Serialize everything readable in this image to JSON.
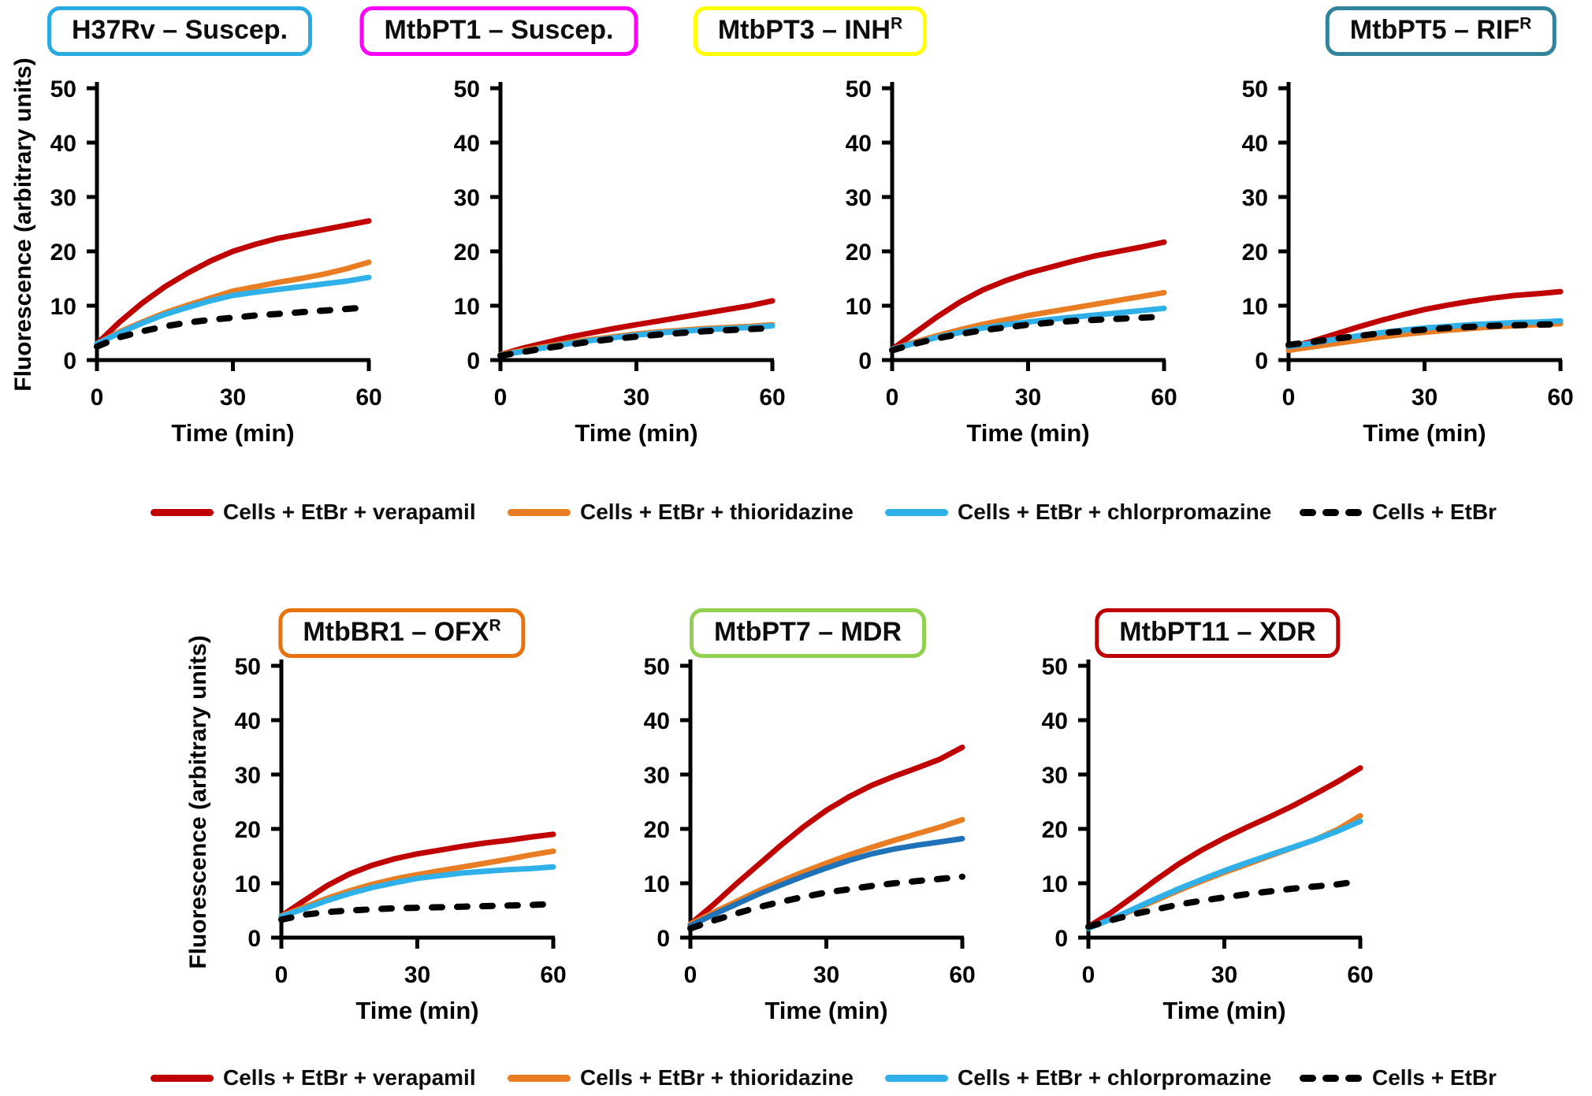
{
  "figure": {
    "y_axis_label": "Fluorescence (arbitrary units)",
    "x_axis_label": "Time (min)"
  },
  "legend": {
    "items": [
      {
        "label": "Cells + EtBr + verapamil",
        "color": "#C00000",
        "style": "solid"
      },
      {
        "label": "Cells + EtBr + thioridazine",
        "color": "#E87D23",
        "style": "solid"
      },
      {
        "label": "Cells + EtBr + chlorpromazine",
        "color": "#2FB0E8",
        "style": "solid"
      },
      {
        "label": "Cells + EtBr",
        "color": "#000000",
        "style": "dashed"
      }
    ]
  },
  "chart_data": [
    {
      "type": "line",
      "title": "H37Rv – Suscep.",
      "title_superscript": "",
      "frame_color": "#29ABE2",
      "x_label": "Time (min)",
      "y_label": "Fluorescence (arbitrary units)",
      "xlim": [
        0,
        60
      ],
      "ylim": [
        0,
        50
      ],
      "x_ticks": [
        0,
        30,
        60
      ],
      "y_ticks": [
        0,
        10,
        20,
        30,
        40,
        50
      ],
      "x": [
        0,
        5,
        10,
        15,
        20,
        25,
        30,
        35,
        40,
        45,
        50,
        55,
        60
      ],
      "series": [
        {
          "name": "Cells + EtBr + verapamil",
          "color": "#C00000",
          "style": "solid",
          "values": [
            3,
            7,
            10.5,
            13.5,
            16,
            18.2,
            20,
            21.3,
            22.4,
            23.2,
            24,
            24.8,
            25.6
          ]
        },
        {
          "name": "Cells + EtBr + thioridazine",
          "color": "#E87D23",
          "style": "solid",
          "values": [
            3,
            5.2,
            7,
            8.7,
            10.1,
            11.4,
            12.7,
            13.5,
            14.3,
            15,
            15.8,
            16.8,
            18
          ]
        },
        {
          "name": "Cells + EtBr + chlorpromazine",
          "color": "#2FB0E8",
          "style": "solid",
          "values": [
            3,
            5,
            6.8,
            8.4,
            9.7,
            10.9,
            11.9,
            12.5,
            13,
            13.5,
            14,
            14.5,
            15.2
          ]
        },
        {
          "name": "Cells + EtBr",
          "color": "#000000",
          "style": "dashed",
          "values": [
            2.5,
            4.2,
            5.3,
            6.2,
            6.9,
            7.4,
            7.8,
            8.2,
            8.5,
            8.8,
            9.1,
            9.4,
            9.7
          ]
        }
      ]
    },
    {
      "type": "line",
      "title": "MtbPT1 – Suscep.",
      "title_superscript": "",
      "frame_color": "#FF00FF",
      "x_label": "Time (min)",
      "y_label": "Fluorescence (arbitrary units)",
      "xlim": [
        0,
        60
      ],
      "ylim": [
        0,
        50
      ],
      "x_ticks": [
        0,
        30,
        60
      ],
      "y_ticks": [
        0,
        10,
        20,
        30,
        40,
        50
      ],
      "x": [
        0,
        5,
        10,
        15,
        20,
        25,
        30,
        35,
        40,
        45,
        50,
        55,
        60
      ],
      "series": [
        {
          "name": "Cells + EtBr + verapamil",
          "color": "#C00000",
          "style": "solid",
          "values": [
            1,
            2.2,
            3.2,
            4.2,
            5,
            5.8,
            6.5,
            7.2,
            7.9,
            8.6,
            9.3,
            10,
            10.9
          ]
        },
        {
          "name": "Cells + EtBr + thioridazine",
          "color": "#E87D23",
          "style": "solid",
          "values": [
            1,
            1.8,
            2.5,
            3.2,
            3.8,
            4.3,
            4.8,
            5.2,
            5.5,
            5.8,
            6,
            6.2,
            6.5
          ]
        },
        {
          "name": "Cells + EtBr + chlorpromazine",
          "color": "#2FB0E8",
          "style": "solid",
          "values": [
            0.9,
            1.6,
            2.3,
            3,
            3.6,
            4.1,
            4.6,
            5,
            5.3,
            5.6,
            5.8,
            6,
            6.3
          ]
        },
        {
          "name": "Cells + EtBr",
          "color": "#000000",
          "style": "dashed",
          "values": [
            0.8,
            1.5,
            2.2,
            2.8,
            3.4,
            3.9,
            4.3,
            4.7,
            5,
            5.3,
            5.5,
            5.7,
            5.9
          ]
        }
      ]
    },
    {
      "type": "line",
      "title": "MtbPT3 – INH",
      "title_superscript": "R",
      "frame_color": "#FFFF00",
      "x_label": "Time (min)",
      "y_label": "Fluorescence (arbitrary units)",
      "xlim": [
        0,
        60
      ],
      "ylim": [
        0,
        50
      ],
      "x_ticks": [
        0,
        30,
        60
      ],
      "y_ticks": [
        0,
        10,
        20,
        30,
        40,
        50
      ],
      "x": [
        0,
        5,
        10,
        15,
        20,
        25,
        30,
        35,
        40,
        45,
        50,
        55,
        60
      ],
      "series": [
        {
          "name": "Cells + EtBr + verapamil",
          "color": "#C00000",
          "style": "solid",
          "values": [
            2,
            5,
            8,
            10.7,
            12.9,
            14.6,
            16,
            17.1,
            18.2,
            19.2,
            20,
            20.8,
            21.7
          ]
        },
        {
          "name": "Cells + EtBr + thioridazine",
          "color": "#E87D23",
          "style": "solid",
          "values": [
            2,
            3.3,
            4.5,
            5.6,
            6.6,
            7.4,
            8.2,
            8.9,
            9.6,
            10.3,
            11,
            11.7,
            12.4
          ]
        },
        {
          "name": "Cells + EtBr + chlorpromazine",
          "color": "#2FB0E8",
          "style": "solid",
          "values": [
            2,
            3.1,
            4.2,
            5.1,
            5.9,
            6.5,
            7,
            7.5,
            7.9,
            8.3,
            8.7,
            9.1,
            9.5
          ]
        },
        {
          "name": "Cells + EtBr",
          "color": "#000000",
          "style": "dashed",
          "values": [
            1.8,
            3,
            4,
            4.8,
            5.5,
            6,
            6.5,
            6.9,
            7.2,
            7.4,
            7.6,
            7.8,
            8
          ]
        }
      ]
    },
    {
      "type": "line",
      "title": "MtbPT5 – RIF",
      "title_superscript": "R",
      "frame_color": "#31849B",
      "x_label": "Time (min)",
      "y_label": "Fluorescence (arbitrary units)",
      "xlim": [
        0,
        60
      ],
      "ylim": [
        0,
        50
      ],
      "x_ticks": [
        0,
        30,
        60
      ],
      "y_ticks": [
        0,
        10,
        20,
        30,
        40,
        50
      ],
      "x": [
        0,
        5,
        10,
        15,
        20,
        25,
        30,
        35,
        40,
        45,
        50,
        55,
        60
      ],
      "series": [
        {
          "name": "Cells + EtBr + verapamil",
          "color": "#C00000",
          "style": "solid",
          "values": [
            2.3,
            3.4,
            4.7,
            6,
            7.2,
            8.3,
            9.3,
            10.1,
            10.8,
            11.4,
            11.9,
            12.2,
            12.6
          ]
        },
        {
          "name": "Cells + EtBr + thioridazine",
          "color": "#E87D23",
          "style": "solid",
          "values": [
            1.8,
            2.4,
            3,
            3.6,
            4.2,
            4.7,
            5.1,
            5.5,
            5.8,
            6.1,
            6.3,
            6.5,
            6.7
          ]
        },
        {
          "name": "Cells + EtBr + chlorpromazine",
          "color": "#2FB0E8",
          "style": "solid",
          "values": [
            2.5,
            3.1,
            3.8,
            4.4,
            5,
            5.5,
            5.9,
            6.2,
            6.5,
            6.7,
            6.9,
            7,
            7.2
          ]
        },
        {
          "name": "Cells + EtBr",
          "color": "#000000",
          "style": "dashed",
          "values": [
            2.8,
            3.3,
            3.9,
            4.4,
            4.9,
            5.3,
            5.6,
            5.9,
            6.1,
            6.3,
            6.4,
            6.5,
            6.6
          ]
        }
      ]
    },
    {
      "type": "line",
      "title": "MtbBR1 – OFX",
      "title_superscript": "R",
      "frame_color": "#E8720C",
      "x_label": "Time (min)",
      "y_label": "Fluorescence (arbitrary units)",
      "xlim": [
        0,
        60
      ],
      "ylim": [
        0,
        50
      ],
      "x_ticks": [
        0,
        30,
        60
      ],
      "y_ticks": [
        0,
        10,
        20,
        30,
        40,
        50
      ],
      "x": [
        0,
        5,
        10,
        15,
        20,
        25,
        30,
        35,
        40,
        45,
        50,
        55,
        60
      ],
      "series": [
        {
          "name": "Cells + EtBr + verapamil",
          "color": "#C00000",
          "style": "solid",
          "values": [
            4,
            6.8,
            9.5,
            11.7,
            13.3,
            14.5,
            15.4,
            16.1,
            16.8,
            17.4,
            17.9,
            18.5,
            19
          ]
        },
        {
          "name": "Cells + EtBr + thioridazine",
          "color": "#E87D23",
          "style": "solid",
          "values": [
            4,
            5.6,
            7.2,
            8.6,
            9.8,
            10.8,
            11.6,
            12.3,
            13,
            13.7,
            14.4,
            15.2,
            15.9
          ]
        },
        {
          "name": "Cells + EtBr + chlorpromazine",
          "color": "#2FB0E8",
          "style": "solid",
          "values": [
            3.9,
            5.3,
            6.8,
            8.1,
            9.2,
            10.1,
            10.9,
            11.4,
            11.9,
            12.2,
            12.5,
            12.7,
            13
          ]
        },
        {
          "name": "Cells + EtBr",
          "color": "#000000",
          "style": "dashed",
          "values": [
            3.3,
            4.2,
            4.7,
            5,
            5.2,
            5.4,
            5.5,
            5.6,
            5.7,
            5.8,
            5.9,
            6,
            6.2
          ]
        }
      ]
    },
    {
      "type": "line",
      "title": "MtbPT7 – MDR",
      "title_superscript": "",
      "frame_color": "#92D050",
      "x_label": "Time (min)",
      "y_label": "Fluorescence (arbitrary units)",
      "xlim": [
        0,
        60
      ],
      "ylim": [
        0,
        50
      ],
      "x_ticks": [
        0,
        30,
        60
      ],
      "y_ticks": [
        0,
        10,
        20,
        30,
        40,
        50
      ],
      "x": [
        0,
        5,
        10,
        15,
        20,
        25,
        30,
        35,
        40,
        45,
        50,
        55,
        60
      ],
      "series": [
        {
          "name": "Cells + EtBr + verapamil",
          "color": "#C00000",
          "style": "solid",
          "values": [
            2.5,
            6,
            9.8,
            13.4,
            17,
            20.4,
            23.4,
            25.9,
            28,
            29.7,
            31.2,
            32.8,
            35
          ]
        },
        {
          "name": "Cells + EtBr + thioridazine",
          "color": "#E87D23",
          "style": "solid",
          "values": [
            2.5,
            4.6,
            6.6,
            8.6,
            10.4,
            12.1,
            13.7,
            15.2,
            16.6,
            17.9,
            19.1,
            20.3,
            21.7
          ]
        },
        {
          "name": "Cells + EtBr + chlorpromazine",
          "color": "#1F72B8",
          "style": "solid",
          "values": [
            2.2,
            4.2,
            6.1,
            8,
            9.7,
            11.3,
            12.8,
            14.2,
            15.4,
            16.3,
            17,
            17.6,
            18.2
          ]
        },
        {
          "name": "Cells + EtBr",
          "color": "#000000",
          "style": "dashed",
          "values": [
            1.7,
            3.1,
            4.4,
            5.6,
            6.6,
            7.5,
            8.3,
            8.9,
            9.5,
            10,
            10.4,
            10.8,
            11.2
          ]
        }
      ]
    },
    {
      "type": "line",
      "title": "MtbPT11 – XDR",
      "title_superscript": "",
      "frame_color": "#C00000",
      "x_label": "Time (min)",
      "y_label": "Fluorescence (arbitrary units)",
      "xlim": [
        0,
        60
      ],
      "ylim": [
        0,
        50
      ],
      "x_ticks": [
        0,
        30,
        60
      ],
      "y_ticks": [
        0,
        10,
        20,
        30,
        40,
        50
      ],
      "x": [
        0,
        5,
        10,
        15,
        20,
        25,
        30,
        35,
        40,
        45,
        50,
        55,
        60
      ],
      "series": [
        {
          "name": "Cells + EtBr + verapamil",
          "color": "#C00000",
          "style": "solid",
          "values": [
            2,
            4.6,
            7.6,
            10.7,
            13.6,
            16.1,
            18.3,
            20.3,
            22.2,
            24.2,
            26.4,
            28.7,
            31.2
          ]
        },
        {
          "name": "Cells + EtBr + thioridazine",
          "color": "#E87D23",
          "style": "solid",
          "values": [
            1.8,
            3.4,
            5.1,
            6.9,
            8.7,
            10.4,
            12,
            13.5,
            15,
            16.5,
            18,
            19.9,
            22.4
          ]
        },
        {
          "name": "Cells + EtBr + chlorpromazine",
          "color": "#2FB0E8",
          "style": "solid",
          "values": [
            1.7,
            3.4,
            5.3,
            7.2,
            9,
            10.7,
            12.3,
            13.8,
            15.2,
            16.6,
            18,
            19.6,
            21.4
          ]
        },
        {
          "name": "Cells + EtBr",
          "color": "#000000",
          "style": "dashed",
          "values": [
            2,
            3.2,
            4.3,
            5.2,
            6.1,
            6.8,
            7.4,
            8,
            8.5,
            9,
            9.4,
            9.8,
            10.4
          ]
        }
      ]
    }
  ]
}
